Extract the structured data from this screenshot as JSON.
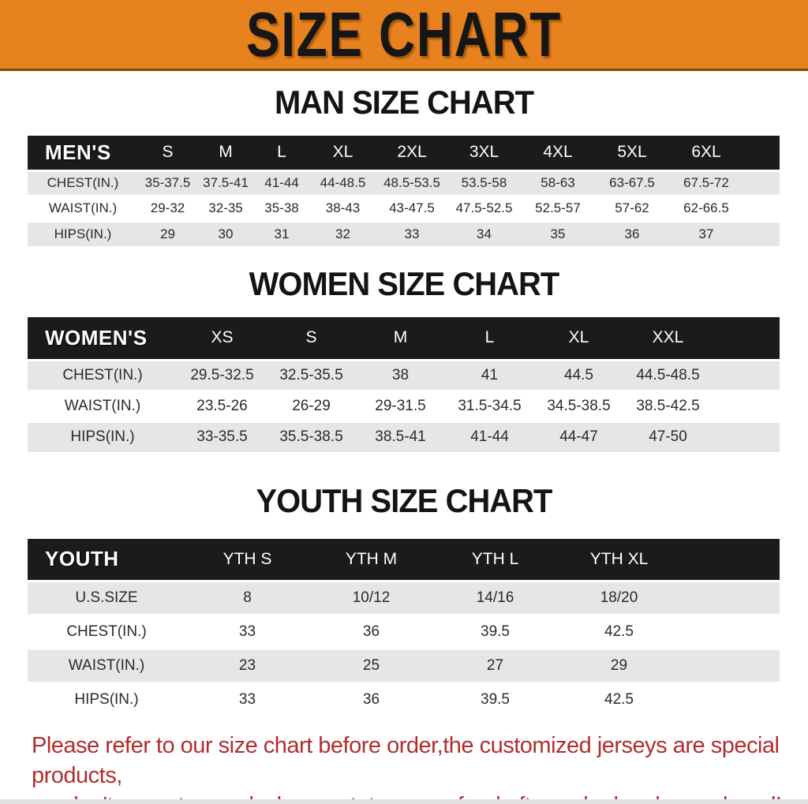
{
  "banner": {
    "title": "SIZE CHART"
  },
  "headings": {
    "men": "MAN SIZE CHART",
    "women": "WOMEN SIZE CHART",
    "youth": "YOUTH SIZE CHART"
  },
  "tables": {
    "men": {
      "corner_label": "MEN'S",
      "columns": [
        "S",
        "M",
        "L",
        "XL",
        "2XL",
        "3XL",
        "4XL",
        "5XL",
        "6XL"
      ],
      "rows": [
        {
          "label": "CHEST(IN.)",
          "values": [
            "35-37.5",
            "37.5-41",
            "41-44",
            "44-48.5",
            "48.5-53.5",
            "53.5-58",
            "58-63",
            "63-67.5",
            "67.5-72"
          ]
        },
        {
          "label": "WAIST(IN.)",
          "values": [
            "29-32",
            "32-35",
            "35-38",
            "38-43",
            "43-47.5",
            "47.5-52.5",
            "52.5-57",
            "57-62",
            "62-66.5"
          ]
        },
        {
          "label": "HIPS(IN.)",
          "values": [
            "29",
            "30",
            "31",
            "32",
            "33",
            "34",
            "35",
            "36",
            "37"
          ]
        }
      ]
    },
    "women": {
      "corner_label": "WOMEN'S",
      "columns": [
        "XS",
        "S",
        "M",
        "L",
        "XL",
        "XXL"
      ],
      "rows": [
        {
          "label": "CHEST(IN.)",
          "values": [
            "29.5-32.5",
            "32.5-35.5",
            "38",
            "41",
            "44.5",
            "44.5-48.5"
          ]
        },
        {
          "label": "WAIST(IN.)",
          "values": [
            "23.5-26",
            "26-29",
            "29-31.5",
            "31.5-34.5",
            "34.5-38.5",
            "38.5-42.5"
          ]
        },
        {
          "label": "HIPS(IN.)",
          "values": [
            "33-35.5",
            "35.5-38.5",
            "38.5-41",
            "41-44",
            "44-47",
            "47-50"
          ]
        }
      ]
    },
    "youth": {
      "corner_label": "YOUTH",
      "columns": [
        "YTH S",
        "YTH M",
        "YTH L",
        "YTH XL"
      ],
      "rows": [
        {
          "label": "U.S.SIZE",
          "values": [
            "8",
            "10/12",
            "14/16",
            "18/20"
          ]
        },
        {
          "label": "CHEST(IN.)",
          "values": [
            "33",
            "36",
            "39.5",
            "42.5"
          ]
        },
        {
          "label": "WAIST(IN.)",
          "values": [
            "23",
            "25",
            "27",
            "29"
          ]
        },
        {
          "label": "HIPS(IN.)",
          "values": [
            "33",
            "36",
            "39.5",
            "42.5"
          ]
        }
      ]
    }
  },
  "disclaimer": {
    "lines": [
      "Please refer to our size chart before order,the customized jerseys are special products,",
      "we don't accept cancel, change, teturn or refund after order has been placed!"
    ]
  },
  "colors": {
    "banner_bg": "#E8821E",
    "table_header_bg": "#1b1b1b",
    "row_alt_bg": "#e7e6e4",
    "disclaimer_text": "#B22E2E"
  }
}
